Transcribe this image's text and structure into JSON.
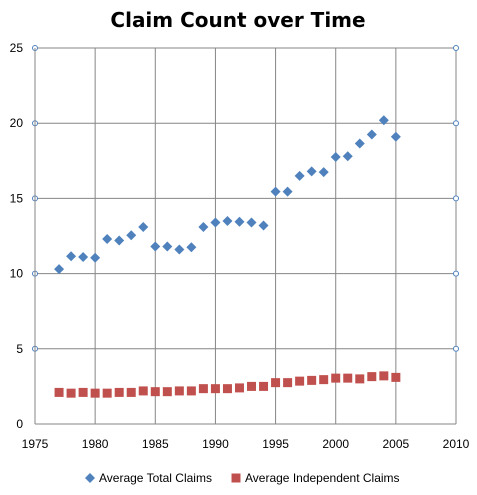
{
  "chart_data": {
    "type": "scatter",
    "title": "Claim Count over Time",
    "xlabel": "",
    "ylabel": "",
    "xlim": [
      1975,
      2010
    ],
    "ylim": [
      0,
      25
    ],
    "xticks": [
      1975,
      1980,
      1985,
      1990,
      1995,
      2000,
      2005,
      2010
    ],
    "yticks": [
      0,
      5,
      10,
      15,
      20,
      25
    ],
    "grid": true,
    "legend": "bottom",
    "series": [
      {
        "name": "Average Total Claims",
        "marker": "diamond",
        "color": "#4F81BD",
        "x": [
          1977,
          1978,
          1979,
          1980,
          1981,
          1982,
          1983,
          1984,
          1985,
          1986,
          1987,
          1988,
          1989,
          1990,
          1991,
          1992,
          1993,
          1994,
          1995,
          1996,
          1997,
          1998,
          1999,
          2000,
          2001,
          2002,
          2003,
          2004,
          2005
        ],
        "y": [
          10.3,
          11.15,
          11.1,
          11.05,
          12.3,
          12.2,
          12.55,
          13.1,
          11.8,
          11.8,
          11.6,
          11.75,
          13.1,
          13.4,
          13.5,
          13.45,
          13.4,
          13.2,
          15.45,
          15.45,
          16.5,
          16.8,
          16.75,
          17.75,
          17.8,
          18.65,
          19.25,
          20.2,
          19.1
        ]
      },
      {
        "name": "Average Independent Claims",
        "marker": "square",
        "color": "#C0504D",
        "x": [
          1977,
          1978,
          1979,
          1980,
          1981,
          1982,
          1983,
          1984,
          1985,
          1986,
          1987,
          1988,
          1989,
          1990,
          1991,
          1992,
          1993,
          1994,
          1995,
          1996,
          1997,
          1998,
          1999,
          2000,
          2001,
          2002,
          2003,
          2004,
          2005
        ],
        "y": [
          2.1,
          2.05,
          2.1,
          2.05,
          2.05,
          2.1,
          2.1,
          2.2,
          2.15,
          2.15,
          2.2,
          2.2,
          2.35,
          2.35,
          2.35,
          2.4,
          2.5,
          2.5,
          2.75,
          2.75,
          2.85,
          2.9,
          2.95,
          3.05,
          3.05,
          3.0,
          3.15,
          3.2,
          3.1
        ]
      }
    ]
  }
}
